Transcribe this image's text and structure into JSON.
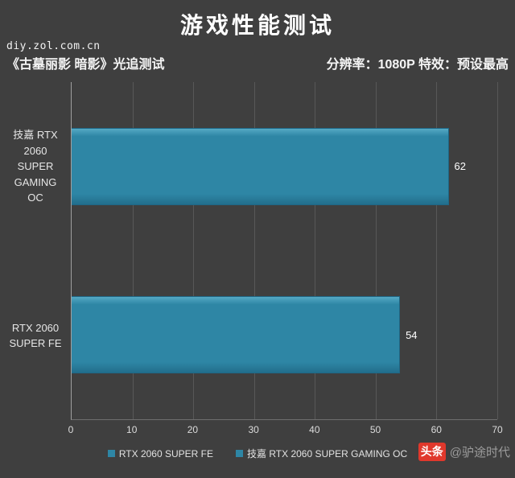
{
  "page": {
    "watermark": "diy.zol.com.cn",
    "title": "游戏性能测试",
    "subtitle_left": "《古墓丽影 暗影》光追测试",
    "subtitle_right": "分辨率：1080P 特效：预设最高",
    "footer_brand": "头条",
    "footer_handle": "@驴途时代"
  },
  "colors": {
    "background": "#3f3f3f",
    "bar": "#2e86a5",
    "grid": "#585858",
    "axis": "#a0a0a0",
    "text": "#e8e8e8"
  },
  "chart_data": {
    "type": "bar",
    "orientation": "horizontal",
    "title": "游戏性能测试",
    "subtitle": "《古墓丽影 暗影》光追测试  分辨率：1080P 特效：预设最高",
    "categories": [
      "技嘉 RTX 2060 SUPER GAMING OC",
      "RTX 2060 SUPER FE"
    ],
    "values": [
      62,
      54
    ],
    "xlim": [
      0,
      70
    ],
    "xticks": [
      0,
      10,
      20,
      30,
      40,
      50,
      60,
      70
    ],
    "grid": true,
    "legend": [
      "RTX 2060 SUPER FE",
      "技嘉 RTX 2060 SUPER GAMING OC"
    ],
    "legend_position": "bottom"
  }
}
